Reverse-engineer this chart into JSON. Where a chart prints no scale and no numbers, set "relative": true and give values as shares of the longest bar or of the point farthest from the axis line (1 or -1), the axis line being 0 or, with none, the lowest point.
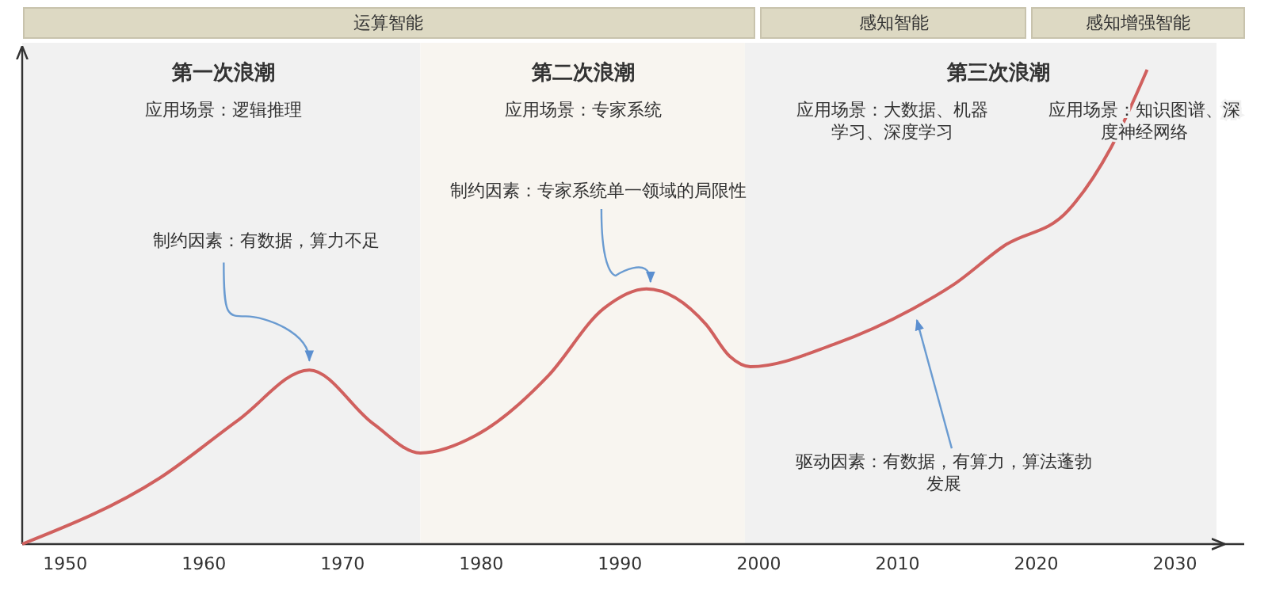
{
  "chart_data": {
    "type": "line",
    "relative": true,
    "x": [
      1946.9,
      1956.8,
      1962.5,
      1967.6,
      1972.2,
      1975.6,
      1979.6,
      1984.8,
      1988.8,
      1991.9,
      1996.2,
      1997.9,
      1999.4,
      2005.4,
      2011.1,
      2014.0,
      2017.7,
      2022.3,
      2025.4,
      2028.0
    ],
    "series": [
      {
        "color": "#d0605e",
        "values": [
          0,
          0.139,
          0.262,
          0.367,
          0.254,
          0.192,
          0.229,
          0.354,
          0.496,
          0.538,
          0.463,
          0.396,
          0.374,
          0.421,
          0.496,
          0.546,
          0.629,
          0.703,
          0.836,
          1
        ]
      }
    ],
    "xlim": [
      1946.9,
      2035
    ],
    "xticks": [
      1950,
      1960,
      1970,
      1980,
      1990,
      2000,
      2010,
      2020,
      2030
    ],
    "bands": [
      {
        "axis": "x",
        "from": 1946.9,
        "to": 1975.6,
        "color": "#f1f1f1"
      },
      {
        "axis": "x",
        "from": 1975.6,
        "to": 1999.0,
        "color": "#f8f5f0"
      },
      {
        "axis": "x",
        "from": 1999.0,
        "to": 2033.0,
        "color": "#f1f1f1"
      }
    ],
    "annotations": [
      "运算智能",
      "感知智能",
      "感知增强智能",
      "第一次浪潮",
      "第二次浪潮",
      "第三次浪潮",
      "应用场景：逻辑推理",
      "应用场景：专家系统",
      "应用场景：大数据、机器学习、深度学习",
      "应用场景：知识图谱、深度神经网络",
      {
        "text": "制约因素：有数据，算力不足",
        "x": 1967.6,
        "y": 0.38
      },
      {
        "text": "制约因素：专家系统单一领域的局限性",
        "x": 1992.2,
        "y": 0.546
      },
      {
        "text": "驱动因素：有数据，有算力，算法蓬勃发展",
        "x": 2011.4,
        "y": 0.479
      }
    ]
  }
}
